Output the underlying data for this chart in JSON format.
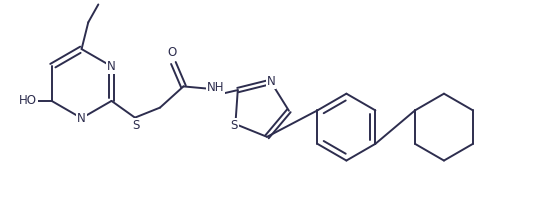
{
  "background_color": "#ffffff",
  "line_color": "#2d2d4e",
  "line_width": 1.4,
  "font_size": 8.5,
  "figsize": [
    5.59,
    2.23
  ],
  "dpi": 100,
  "xlim": [
    0,
    10
  ],
  "ylim": [
    0,
    4
  ]
}
